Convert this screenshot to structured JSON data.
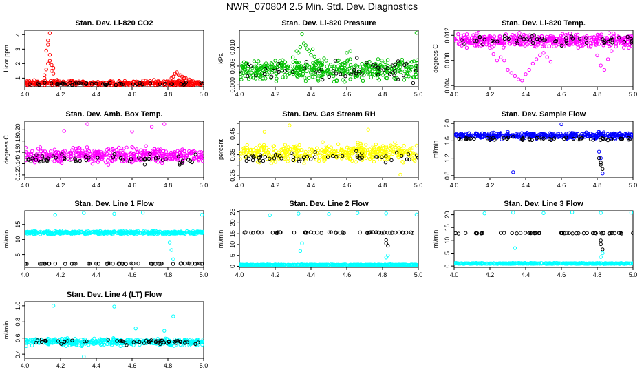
{
  "page": {
    "title": "NWR_070804  2.5 Min. Std. Dev. Diagnostics"
  },
  "colors": {
    "black": "#000000"
  },
  "chart_data": [
    {
      "type": "scatter",
      "title": "Stan. Dev. Li-820 CO2",
      "ylabel": "Licor ppm",
      "color": "#ff0000",
      "xlim": [
        4.0,
        5.0
      ],
      "ylim": [
        0.4,
        4.3
      ],
      "xticks": [
        "4.0",
        "4.2",
        "4.4",
        "4.6",
        "4.8",
        "5.0"
      ],
      "yticks": [
        1,
        2,
        3,
        4
      ],
      "ytick_labels": [
        "1",
        "2",
        "3",
        "4"
      ],
      "series": [
        {
          "color": "#ff0000",
          "base": 0.65,
          "spread": 0.25,
          "x": [
            4.11,
            4.12,
            4.13,
            4.14,
            4.15,
            4.16,
            4.13,
            4.14,
            4.12,
            4.15,
            4.11,
            4.16,
            4.14,
            4.13,
            4.82,
            4.84,
            4.86,
            4.88,
            4.9,
            4.92,
            4.85,
            4.87,
            4.83,
            4.89
          ],
          "y": [
            1.2,
            1.6,
            2.0,
            2.2,
            1.9,
            1.3,
            3.6,
            4.1,
            2.9,
            1.5,
            1.0,
            1.7,
            2.6,
            3.3,
            1.0,
            1.3,
            1.2,
            1.1,
            1.0,
            0.9,
            1.4,
            1.2,
            1.1,
            1.0
          ]
        },
        {
          "color": "#000000",
          "base": 0.6,
          "spread": 0.12,
          "x": [],
          "y": []
        }
      ]
    },
    {
      "type": "scatter",
      "title": "Stan. Dev. Li-820 Pressure",
      "ylabel": "kPa",
      "color": "#00c000",
      "xlim": [
        4.0,
        5.0
      ],
      "ylim": [
        -0.0005,
        0.0145
      ],
      "xticks": [
        "4.0",
        "4.2",
        "4.4",
        "4.6",
        "4.8",
        "5.0"
      ],
      "yticks": [
        0.0,
        0.005,
        0.01
      ],
      "ytick_labels": [
        "0.000",
        "0.005",
        "0.010"
      ],
      "series": [
        {
          "color": "#00c000",
          "base": 0.004,
          "spread": 0.004,
          "x": [
            4.32,
            4.34,
            4.36,
            4.38,
            4.4,
            4.42,
            4.35,
            4.37,
            4.33,
            4.39,
            4.41,
            4.6,
            4.62,
            4.99
          ],
          "y": [
            0.009,
            0.01,
            0.011,
            0.0095,
            0.008,
            0.0075,
            0.0135,
            0.0105,
            0.0085,
            0.009,
            0.0095,
            0.0085,
            0.009,
            0.0138
          ]
        },
        {
          "color": "#000000",
          "base": 0.004,
          "spread": 0.004,
          "x": [],
          "y": []
        }
      ]
    },
    {
      "type": "scatter",
      "title": "Stan. Dev. Li-820 Temp.",
      "ylabel": "degrees C",
      "color": "#ff00ff",
      "xlim": [
        4.0,
        5.0
      ],
      "ylim": [
        0.0038,
        0.0128
      ],
      "xticks": [
        "4.0",
        "4.2",
        "4.4",
        "4.6",
        "4.8",
        "5.0"
      ],
      "yticks": [
        0.004,
        0.008,
        0.012
      ],
      "ytick_labels": [
        "0.004",
        "0.008",
        "0.012"
      ],
      "series": [
        {
          "color": "#ff00ff",
          "base": 0.0112,
          "spread": 0.0015,
          "x": [
            4.2,
            4.22,
            4.24,
            4.26,
            4.28,
            4.3,
            4.32,
            4.34,
            4.36,
            4.38,
            4.4,
            4.42,
            4.44,
            4.46,
            4.48,
            4.5,
            4.52,
            4.54,
            4.8,
            4.82,
            4.84,
            4.86,
            4.88
          ],
          "y": [
            0.01,
            0.009,
            0.008,
            0.0085,
            0.008,
            0.0065,
            0.006,
            0.0055,
            0.005,
            0.0048,
            0.0058,
            0.0065,
            0.0075,
            0.0082,
            0.0088,
            0.0092,
            0.0085,
            0.0078,
            0.0088,
            0.0072,
            0.0065,
            0.0082,
            0.0095
          ]
        },
        {
          "color": "#000000",
          "base": 0.0112,
          "spread": 0.0012,
          "x": [],
          "y": []
        }
      ]
    },
    {
      "type": "scatter",
      "title": "Stan. Dev. Amb. Box Temp.",
      "ylabel": "degrees C",
      "color": "#ff00ff",
      "xlim": [
        4.0,
        5.0
      ],
      "ylim": [
        0.115,
        0.215
      ],
      "xticks": [
        "4.0",
        "4.2",
        "4.4",
        "4.6",
        "4.8",
        "5.0"
      ],
      "yticks": [
        0.12,
        0.14,
        0.16,
        0.18,
        0.2
      ],
      "ytick_labels": [
        "0.12",
        "0.14",
        "0.16",
        "0.18",
        "0.20"
      ],
      "series": [
        {
          "color": "#ff00ff",
          "base": 0.155,
          "spread": 0.018,
          "x": [
            4.35,
            4.78,
            4.71,
            4.22,
            4.6
          ],
          "y": [
            0.21,
            0.21,
            0.205,
            0.198,
            0.197
          ]
        },
        {
          "color": "#000000",
          "base": 0.148,
          "spread": 0.012,
          "x": [],
          "y": []
        }
      ]
    },
    {
      "type": "scatter",
      "title": "Stan. Dev. Gas Stream RH",
      "ylabel": "percent",
      "color": "#ffff00",
      "xlim": [
        4.0,
        5.0
      ],
      "ylim": [
        0.24,
        0.51
      ],
      "xticks": [
        "4.0",
        "4.2",
        "4.4",
        "4.6",
        "4.8",
        "5.0"
      ],
      "yticks": [
        0.25,
        0.3,
        0.35,
        0.4,
        0.45,
        0.5
      ],
      "ytick_labels": [
        "0.25",
        "",
        "0.35",
        "",
        "0.45",
        ""
      ],
      "series": [
        {
          "color": "#ffff00",
          "base": 0.36,
          "spread": 0.06,
          "x": [
            4.28,
            4.72,
            4.14,
            4.9
          ],
          "y": [
            0.49,
            0.47,
            0.46,
            0.255
          ]
        },
        {
          "color": "#000000",
          "base": 0.34,
          "spread": 0.035,
          "x": [],
          "y": []
        }
      ]
    },
    {
      "type": "scatter",
      "title": "Stan. Dev. Sample Flow",
      "ylabel": "ml/min",
      "color": "#0000ff",
      "xlim": [
        4.0,
        5.0
      ],
      "ylim": [
        0.75,
        2.05
      ],
      "xticks": [
        "4.0",
        "4.2",
        "4.4",
        "4.6",
        "4.8",
        "5.0"
      ],
      "yticks": [
        0.8,
        1.2,
        1.6,
        2.0
      ],
      "ytick_labels": [
        "0.8",
        "1.2",
        "1.6",
        "2.0"
      ],
      "series": [
        {
          "color": "#0000ff",
          "base": 1.72,
          "spread": 0.1,
          "x": [
            4.33,
            4.82,
            4.83,
            4.81,
            4.6
          ],
          "y": [
            0.88,
            1.2,
            0.85,
            1.35,
            1.98
          ]
        },
        {
          "color": "#000000",
          "base": 1.65,
          "spread": 0.06,
          "x": [
            4.81,
            4.82,
            4.83,
            4.82
          ],
          "y": [
            1.2,
            1.05,
            0.95,
            1.1
          ]
        }
      ]
    },
    {
      "type": "scatter",
      "title": "Stan. Dev. Line 1 Flow",
      "ylabel": "ml/min",
      "color": "#00ffff",
      "xlim": [
        4.0,
        5.0
      ],
      "ylim": [
        0.8,
        19.5
      ],
      "xticks": [
        "4.0",
        "4.2",
        "4.4",
        "4.6",
        "4.8",
        "5.0"
      ],
      "yticks": [
        5,
        10,
        15
      ],
      "ytick_labels": [
        "5",
        "10",
        "15"
      ],
      "series": [
        {
          "color": "#00ffff",
          "base": 12.3,
          "spread": 0.7,
          "x": [
            4.17,
            4.33,
            4.5,
            4.66,
            4.82,
            4.99,
            4.81,
            4.83
          ],
          "y": [
            18.2,
            18.8,
            18.5,
            18.9,
            6.5,
            18.2,
            9.0,
            3.5
          ]
        },
        {
          "color": "#000000",
          "base": 2.0,
          "spread": 0.15,
          "x": [],
          "y": []
        }
      ]
    },
    {
      "type": "scatter",
      "title": "Stan. Dev. Line 2 Flow",
      "ylabel": "ml/min",
      "color": "#00ffff",
      "xlim": [
        4.0,
        5.0
      ],
      "ylim": [
        -0.5,
        25.5
      ],
      "xticks": [
        "4.0",
        "4.2",
        "4.4",
        "4.6",
        "4.8",
        "5.0"
      ],
      "yticks": [
        0,
        5,
        10,
        15,
        20,
        25
      ],
      "ytick_labels": [
        "0",
        "5",
        "10",
        "15",
        "20",
        "25"
      ],
      "series": [
        {
          "color": "#00ffff",
          "base": 0.6,
          "spread": 0.3,
          "x": [
            4.17,
            4.33,
            4.5,
            4.66,
            4.82,
            4.99,
            4.34,
            4.83,
            4.82,
            4.35
          ],
          "y": [
            23.5,
            24.2,
            24.0,
            24.5,
            24.3,
            23.8,
            7.0,
            5.0,
            4.0,
            10.5
          ]
        },
        {
          "color": "#000000",
          "base": 15.5,
          "spread": 0.35,
          "x": [
            4.82,
            4.82,
            4.83
          ],
          "y": [
            12.0,
            10.5,
            9.5
          ]
        }
      ]
    },
    {
      "type": "scatter",
      "title": "Stan. Dev. Line 3 Flow",
      "ylabel": "ml/min",
      "color": "#00ffff",
      "xlim": [
        4.0,
        5.0
      ],
      "ylim": [
        -0.5,
        21.5
      ],
      "xticks": [
        "4.0",
        "4.2",
        "4.4",
        "4.6",
        "4.8",
        "5.0"
      ],
      "yticks": [
        0,
        5,
        10,
        15,
        20
      ],
      "ytick_labels": [
        "0",
        "5",
        "10",
        "15",
        "20"
      ],
      "series": [
        {
          "color": "#00ffff",
          "base": 1.0,
          "spread": 0.25,
          "x": [
            4.17,
            4.33,
            4.5,
            4.66,
            4.82,
            4.99,
            4.34,
            4.83,
            4.82
          ],
          "y": [
            20.5,
            20.8,
            20.6,
            20.9,
            20.7,
            20.8,
            7.0,
            5.0,
            3.5
          ]
        },
        {
          "color": "#000000",
          "base": 12.8,
          "spread": 0.25,
          "x": [
            4.82,
            4.82,
            4.83
          ],
          "y": [
            10.0,
            8.5,
            6.5
          ]
        }
      ]
    },
    {
      "type": "scatter",
      "title": "Stan. Dev. Line 4 (LT) Flow",
      "ylabel": "ml/min",
      "color": "#00ffff",
      "xlim": [
        4.0,
        5.0
      ],
      "ylim": [
        0.35,
        1.05
      ],
      "xticks": [
        "4.0",
        "4.2",
        "4.4",
        "4.6",
        "4.8",
        "5.0"
      ],
      "yticks": [
        0.4,
        0.6,
        0.8,
        1.0
      ],
      "ytick_labels": [
        "0.4",
        "0.6",
        "0.8",
        "1.0"
      ],
      "series": [
        {
          "color": "#00ffff",
          "base": 0.55,
          "spread": 0.065,
          "x": [
            4.16,
            4.5,
            4.83,
            4.78,
            4.33,
            4.62
          ],
          "y": [
            1.0,
            0.99,
            0.87,
            0.69,
            0.37,
            0.72
          ]
        },
        {
          "color": "#000000",
          "base": 0.55,
          "spread": 0.045,
          "x": [],
          "y": []
        }
      ]
    }
  ]
}
